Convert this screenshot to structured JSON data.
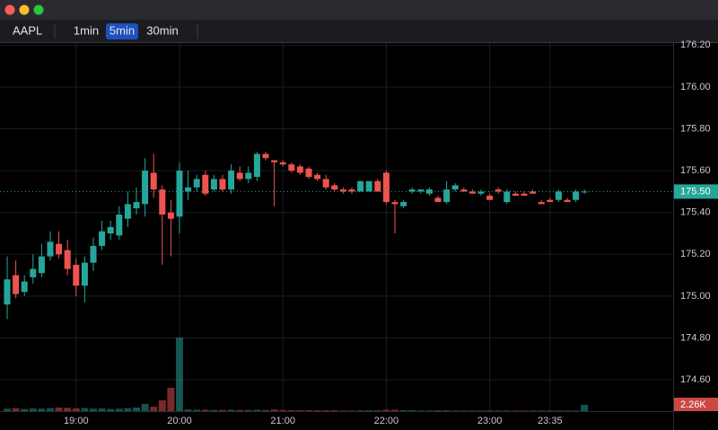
{
  "toolbar": {
    "symbol": "AAPL",
    "intervals": [
      "1min",
      "5min",
      "30min"
    ]
  },
  "chart_data": {
    "type": "candlestick",
    "categories": [
      null,
      null,
      null,
      null,
      null,
      null,
      null,
      null,
      "19:00",
      null,
      null,
      null,
      null,
      null,
      null,
      null,
      null,
      null,
      null,
      null,
      "20:00",
      null,
      null,
      null,
      null,
      null,
      null,
      null,
      null,
      null,
      null,
      null,
      "21:00",
      null,
      null,
      null,
      null,
      null,
      null,
      null,
      null,
      null,
      null,
      null,
      "22:00",
      null,
      null,
      null,
      null,
      null,
      null,
      null,
      null,
      null,
      null,
      null,
      "23:00",
      null,
      null,
      null,
      null,
      null,
      null,
      "23:35",
      null,
      null,
      null,
      null
    ],
    "open": [
      174.96,
      175.1,
      175.02,
      175.09,
      175.11,
      175.19,
      175.25,
      175.22,
      175.15,
      175.05,
      175.16,
      175.24,
      175.3,
      175.29,
      175.37,
      175.42,
      175.44,
      175.59,
      175.51,
      175.4,
      175.38,
      175.5,
      175.52,
      175.58,
      175.51,
      175.56,
      175.51,
      175.59,
      175.56,
      175.57,
      175.68,
      175.65,
      175.64,
      175.63,
      175.62,
      175.61,
      175.58,
      175.56,
      175.53,
      175.51,
      175.51,
      175.5,
      175.5,
      175.55,
      175.59,
      175.45,
      175.43,
      175.5,
      175.5,
      175.49,
      175.47,
      175.45,
      175.51,
      175.51,
      175.5,
      175.49,
      175.48,
      175.51,
      175.45,
      175.49,
      175.49,
      175.5,
      175.45,
      175.46,
      175.46,
      175.46,
      175.46,
      175.5
    ],
    "high": [
      175.19,
      175.17,
      175.1,
      175.2,
      175.25,
      175.31,
      175.31,
      175.27,
      175.18,
      175.19,
      175.28,
      175.36,
      175.36,
      175.43,
      175.5,
      175.52,
      175.66,
      175.68,
      175.53,
      175.46,
      175.64,
      175.6,
      175.58,
      175.6,
      175.58,
      175.58,
      175.63,
      175.62,
      175.62,
      175.69,
      175.69,
      175.65,
      175.65,
      175.64,
      175.63,
      175.62,
      175.59,
      175.58,
      175.54,
      175.52,
      175.52,
      175.55,
      175.55,
      175.56,
      175.6,
      175.46,
      175.46,
      175.52,
      175.51,
      175.52,
      175.48,
      175.55,
      175.54,
      175.52,
      175.51,
      175.51,
      175.49,
      175.52,
      175.51,
      175.5,
      175.5,
      175.51,
      175.46,
      175.47,
      175.51,
      175.47,
      175.51,
      175.51
    ],
    "low": [
      174.89,
      174.99,
      175.0,
      175.06,
      175.09,
      175.17,
      175.18,
      175.1,
      175.0,
      174.97,
      175.12,
      175.22,
      175.27,
      175.27,
      175.33,
      175.39,
      175.38,
      175.47,
      175.15,
      175.19,
      175.3,
      175.46,
      175.5,
      175.48,
      175.5,
      175.5,
      175.49,
      175.55,
      175.54,
      175.55,
      175.65,
      175.43,
      175.62,
      175.59,
      175.58,
      175.56,
      175.55,
      175.51,
      175.5,
      175.49,
      175.49,
      175.5,
      175.5,
      175.5,
      175.44,
      175.3,
      175.42,
      175.49,
      175.49,
      175.48,
      175.45,
      175.44,
      175.5,
      175.5,
      175.49,
      175.48,
      175.46,
      175.49,
      175.44,
      175.48,
      175.48,
      175.49,
      175.44,
      175.45,
      175.45,
      175.45,
      175.45,
      175.49
    ],
    "close": [
      175.08,
      175.01,
      175.07,
      175.13,
      175.19,
      175.26,
      175.2,
      175.13,
      175.05,
      175.16,
      175.24,
      175.31,
      175.33,
      175.39,
      175.44,
      175.45,
      175.6,
      175.51,
      175.39,
      175.37,
      175.6,
      175.52,
      175.56,
      175.49,
      175.56,
      175.51,
      175.6,
      175.56,
      175.59,
      175.68,
      175.66,
      175.64,
      175.63,
      175.6,
      175.59,
      175.57,
      175.56,
      175.52,
      175.51,
      175.5,
      175.5,
      175.55,
      175.55,
      175.5,
      175.45,
      175.44,
      175.45,
      175.51,
      175.51,
      175.51,
      175.45,
      175.51,
      175.53,
      175.5,
      175.49,
      175.5,
      175.46,
      175.5,
      175.5,
      175.48,
      175.48,
      175.49,
      175.44,
      175.45,
      175.5,
      175.45,
      175.5,
      175.5
    ],
    "volume": [
      900,
      1100,
      800,
      1000,
      900,
      1100,
      1300,
      1200,
      1000,
      1100,
      900,
      1000,
      800,
      900,
      1100,
      1300,
      2600,
      1600,
      3900,
      8400,
      26500,
      600,
      500,
      500,
      400,
      400,
      500,
      400,
      400,
      500,
      400,
      600,
      400,
      300,
      300,
      300,
      300,
      300,
      300,
      200,
      200,
      300,
      300,
      300,
      500,
      500,
      300,
      300,
      200,
      200,
      300,
      300,
      200,
      200,
      200,
      200,
      200,
      200,
      200,
      200,
      200,
      200,
      200,
      200,
      200,
      200,
      200,
      2260
    ],
    "up_color": "#26a69a",
    "down_color": "#ef5350",
    "ylim": [
      174.45,
      176.21
    ],
    "yticks": [
      {
        "value": 174.6,
        "label": "174.60"
      },
      {
        "value": 174.8,
        "label": "174.80"
      },
      {
        "value": 175,
        "label": "175.00"
      },
      {
        "value": 175.2,
        "label": "175.20"
      },
      {
        "value": 175.4,
        "label": "175.40"
      },
      {
        "value": 175.6,
        "label": "175.60"
      },
      {
        "value": 175.8,
        "label": "175.80"
      },
      {
        "value": 176,
        "label": "176.00"
      },
      {
        "value": 176.2,
        "label": "176.20"
      }
    ],
    "vlim": [
      0,
      26500
    ],
    "last_price": {
      "value": 175.5,
      "label": "175.50"
    },
    "last_volume": {
      "value": 2260,
      "label": "2.26K"
    },
    "grid": true
  }
}
